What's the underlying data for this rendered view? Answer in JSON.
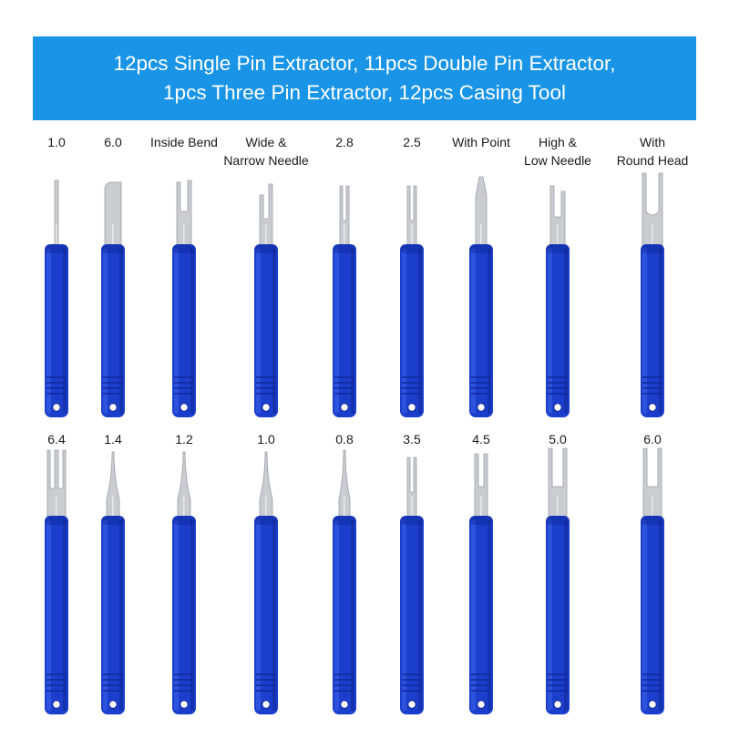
{
  "header": {
    "line1": "12pcs Single Pin Extractor, 11pcs Double Pin Extractor,",
    "line2": "1pcs Three Pin Extractor, 12pcs Casing Tool",
    "background_color": "#1994e6",
    "text_color": "#ffffff"
  },
  "colors": {
    "handle": "#1b3fcc",
    "handle_dark": "#10289a",
    "handle_light": "#3b61e6",
    "metal": "#c9cdd2",
    "metal_light": "#eef0f2"
  },
  "row1": [
    {
      "label": [
        "1.0"
      ],
      "tip": "thin-pin"
    },
    {
      "label": [
        "6.0"
      ],
      "tip": "wide-bent-blade"
    },
    {
      "label": [
        "Inside Bend"
      ],
      "tip": "inside-bend-fork"
    },
    {
      "label": [
        "Wide &",
        "Narrow Needle"
      ],
      "tip": "wide-narrow-fork"
    },
    {
      "label": [
        "2.8"
      ],
      "tip": "double-prong-narrow"
    },
    {
      "label": [
        "2.5"
      ],
      "tip": "double-prong-narrow"
    },
    {
      "label": [
        "With Point"
      ],
      "tip": "pointed-blade"
    },
    {
      "label": [
        "High &",
        "Low Needle"
      ],
      "tip": "high-low-fork"
    },
    {
      "label": [
        "With",
        "Round Head"
      ],
      "tip": "round-head-fork"
    }
  ],
  "row2": [
    {
      "label": [
        "6.4"
      ],
      "tip": "three-prong"
    },
    {
      "label": [
        "1.4"
      ],
      "tip": "needle"
    },
    {
      "label": [
        "1.2"
      ],
      "tip": "needle"
    },
    {
      "label": [
        "1.0"
      ],
      "tip": "needle"
    },
    {
      "label": [
        "0.8"
      ],
      "tip": "needle-fine"
    },
    {
      "label": [
        "3.5"
      ],
      "tip": "double-prong-narrow"
    },
    {
      "label": [
        "4.5"
      ],
      "tip": "double-prong-medium"
    },
    {
      "label": [
        "5.0"
      ],
      "tip": "double-prong-wide"
    },
    {
      "label": [
        "6.0"
      ],
      "tip": "double-prong-wide"
    }
  ]
}
